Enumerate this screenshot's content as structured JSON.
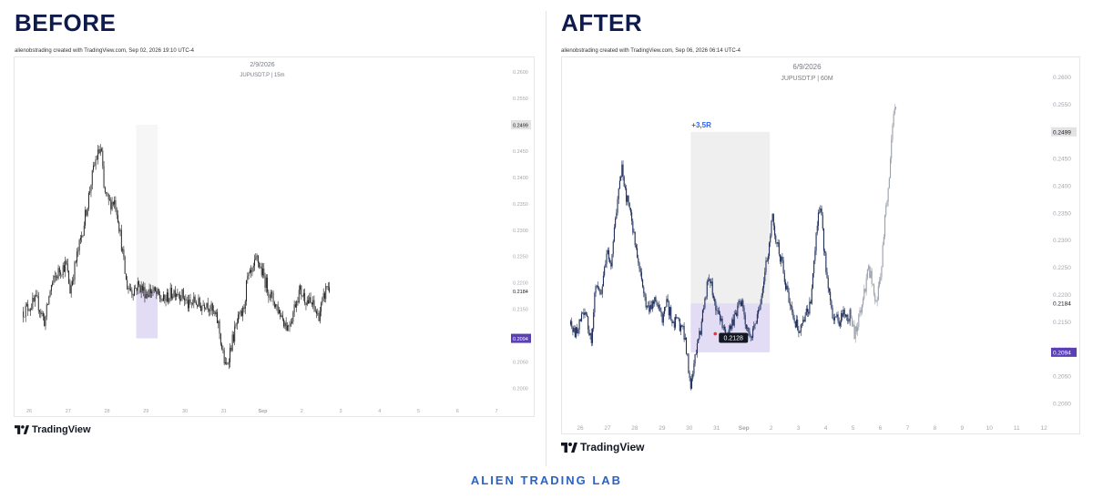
{
  "before": {
    "heading": "BEFORE",
    "credit": "alienobstrading created with TradingView.com, Sep 02, 2026 19:10 UTC-4",
    "brand": "TradingView",
    "chart_data": {
      "type": "candlestick",
      "date": "2/9/2026",
      "symbol": "JUPUSDT.P",
      "interval": "15m",
      "x_tick_labels": [
        "26",
        "27",
        "28",
        "29",
        "30",
        "31",
        "Sep",
        "2",
        "3",
        "4",
        "5",
        "6",
        "7"
      ],
      "y_ticks": [
        0.26,
        0.255,
        0.25,
        0.245,
        0.24,
        0.235,
        0.23,
        0.225,
        0.22,
        0.215,
        0.21,
        0.205,
        0.2
      ],
      "ylim": [
        0.1975,
        0.2625
      ],
      "price_labels": [
        {
          "value": 0.2499,
          "role": "target",
          "text": "0.2499"
        },
        {
          "value": 0.2184,
          "role": "entry",
          "text": "0.2184"
        },
        {
          "value": 0.2094,
          "role": "stop",
          "text": "0.2094"
        }
      ],
      "position": {
        "type": "long",
        "entry": 0.2184,
        "target": 0.2499,
        "stop": 0.2094,
        "x_start": 2.75,
        "x_end": 3.3
      },
      "path": [
        [
          -0.15,
          0.2145
        ],
        [
          0.0,
          0.2155
        ],
        [
          0.2,
          0.2165
        ],
        [
          0.4,
          0.2125
        ],
        [
          0.55,
          0.219
        ],
        [
          0.75,
          0.222
        ],
        [
          0.95,
          0.2235
        ],
        [
          1.05,
          0.2185
        ],
        [
          1.2,
          0.224
        ],
        [
          1.35,
          0.229
        ],
        [
          1.5,
          0.235
        ],
        [
          1.6,
          0.2395
        ],
        [
          1.72,
          0.2435
        ],
        [
          1.85,
          0.2455
        ],
        [
          1.92,
          0.2375
        ],
        [
          2.05,
          0.235
        ],
        [
          2.2,
          0.2355
        ],
        [
          2.28,
          0.2325
        ],
        [
          2.4,
          0.2255
        ],
        [
          2.5,
          0.2195
        ],
        [
          2.65,
          0.2185
        ],
        [
          2.8,
          0.2195
        ],
        [
          3.0,
          0.218
        ],
        [
          3.15,
          0.2185
        ],
        [
          3.3,
          0.2175
        ],
        [
          3.45,
          0.2165
        ],
        [
          3.6,
          0.2175
        ],
        [
          3.75,
          0.2185
        ],
        [
          3.95,
          0.2175
        ],
        [
          4.1,
          0.2155
        ],
        [
          4.25,
          0.2165
        ],
        [
          4.4,
          0.2155
        ],
        [
          4.55,
          0.2165
        ],
        [
          4.7,
          0.2145
        ],
        [
          4.85,
          0.2125
        ],
        [
          4.95,
          0.2075
        ],
        [
          5.05,
          0.2035
        ],
        [
          5.2,
          0.2085
        ],
        [
          5.35,
          0.2125
        ],
        [
          5.5,
          0.2145
        ],
        [
          5.6,
          0.2205
        ],
        [
          5.72,
          0.2215
        ],
        [
          5.85,
          0.2245
        ],
        [
          5.95,
          0.2225
        ],
        [
          6.05,
          0.2205
        ],
        [
          6.2,
          0.2175
        ],
        [
          6.35,
          0.2155
        ],
        [
          6.5,
          0.2135
        ],
        [
          6.62,
          0.2115
        ],
        [
          6.75,
          0.2135
        ],
        [
          6.85,
          0.2165
        ],
        [
          6.95,
          0.2185
        ],
        [
          7.05,
          0.2175
        ],
        [
          7.15,
          0.2165
        ],
        [
          7.3,
          0.2155
        ],
        [
          7.42,
          0.2135
        ],
        [
          7.55,
          0.2165
        ],
        [
          7.65,
          0.2195
        ],
        [
          7.72,
          0.2185
        ]
      ]
    }
  },
  "after": {
    "heading": "AFTER",
    "credit": "alienobstrading created with TradingView.com, Sep 06, 2026 06:14 UTC-4",
    "brand": "TradingView",
    "chart_data": {
      "type": "candlestick",
      "date": "6/9/2026",
      "symbol": "JUPUSDT.P",
      "interval": "60M",
      "x_tick_labels": [
        "26",
        "27",
        "28",
        "29",
        "30",
        "31",
        "Sep",
        "2",
        "3",
        "4",
        "5",
        "6",
        "7",
        "8",
        "9",
        "10",
        "11",
        "12"
      ],
      "y_ticks": [
        0.26,
        0.255,
        0.25,
        0.245,
        0.24,
        0.235,
        0.23,
        0.225,
        0.22,
        0.215,
        0.21,
        0.205,
        0.2
      ],
      "ylim": [
        0.1975,
        0.2635
      ],
      "price_labels": [
        {
          "value": 0.2499,
          "role": "target",
          "text": "0.2499"
        },
        {
          "value": 0.2184,
          "role": "entry",
          "text": "0.2184"
        },
        {
          "value": 0.2094,
          "role": "stop",
          "text": "0.2094"
        }
      ],
      "position": {
        "type": "long",
        "entry": 0.2184,
        "target": 0.2499,
        "stop": 0.2094,
        "x_start": 4.05,
        "x_end": 6.95
      },
      "result_label": "+3,5R",
      "low_marker": {
        "x": 4.95,
        "value": 0.2128,
        "text": "0.2128"
      },
      "path": [
        [
          -0.35,
          0.2145
        ],
        [
          -0.2,
          0.2125
        ],
        [
          0.0,
          0.2155
        ],
        [
          0.2,
          0.2165
        ],
        [
          0.4,
          0.2115
        ],
        [
          0.55,
          0.221
        ],
        [
          0.75,
          0.2195
        ],
        [
          0.9,
          0.2255
        ],
        [
          1.0,
          0.2285
        ],
        [
          1.1,
          0.2245
        ],
        [
          1.25,
          0.232
        ],
        [
          1.35,
          0.236
        ],
        [
          1.45,
          0.2405
        ],
        [
          1.55,
          0.2435
        ],
        [
          1.65,
          0.2385
        ],
        [
          1.75,
          0.2375
        ],
        [
          1.85,
          0.2345
        ],
        [
          2.0,
          0.2305
        ],
        [
          2.1,
          0.2255
        ],
        [
          2.25,
          0.2225
        ],
        [
          2.4,
          0.2185
        ],
        [
          2.55,
          0.2175
        ],
        [
          2.7,
          0.2195
        ],
        [
          2.85,
          0.2175
        ],
        [
          3.0,
          0.2155
        ],
        [
          3.15,
          0.2185
        ],
        [
          3.3,
          0.2165
        ],
        [
          3.45,
          0.2145
        ],
        [
          3.55,
          0.2165
        ],
        [
          3.65,
          0.2135
        ],
        [
          3.75,
          0.2145
        ],
        [
          3.85,
          0.2115
        ],
        [
          3.95,
          0.2075
        ],
        [
          4.05,
          0.2025
        ],
        [
          4.15,
          0.2065
        ],
        [
          4.3,
          0.2105
        ],
        [
          4.45,
          0.2145
        ],
        [
          4.55,
          0.2195
        ],
        [
          4.65,
          0.2215
        ],
        [
          4.75,
          0.2225
        ],
        [
          4.85,
          0.2205
        ],
        [
          4.95,
          0.2185
        ],
        [
          5.1,
          0.2155
        ],
        [
          5.25,
          0.2135
        ],
        [
          5.4,
          0.2125
        ],
        [
          5.55,
          0.2145
        ],
        [
          5.7,
          0.2165
        ],
        [
          5.85,
          0.2195
        ],
        [
          5.95,
          0.2175
        ],
        [
          6.05,
          0.2155
        ],
        [
          6.15,
          0.2135
        ],
        [
          6.25,
          0.2115
        ],
        [
          6.4,
          0.2145
        ],
        [
          6.55,
          0.2175
        ],
        [
          6.65,
          0.2205
        ],
        [
          6.75,
          0.2235
        ],
        [
          6.85,
          0.2265
        ],
        [
          6.95,
          0.2305
        ],
        [
          7.05,
          0.2355
        ],
        [
          7.15,
          0.2305
        ],
        [
          7.25,
          0.2285
        ],
        [
          7.4,
          0.2255
        ],
        [
          7.55,
          0.2215
        ],
        [
          7.7,
          0.2185
        ],
        [
          7.85,
          0.2155
        ],
        [
          8.0,
          0.2135
        ],
        [
          8.15,
          0.2145
        ],
        [
          8.3,
          0.2165
        ],
        [
          8.45,
          0.2185
        ],
        [
          8.55,
          0.2255
        ],
        [
          8.65,
          0.2315
        ],
        [
          8.75,
          0.2365
        ],
        [
          8.85,
          0.2345
        ],
        [
          8.95,
          0.2275
        ],
        [
          9.05,
          0.2235
        ],
        [
          9.15,
          0.2195
        ],
        [
          9.25,
          0.2165
        ],
        [
          9.4,
          0.2155
        ],
        [
          9.5,
          0.2135
        ],
        [
          9.6,
          0.2165
        ],
        [
          9.7,
          0.2175
        ],
        [
          9.8,
          0.2155
        ],
        [
          9.9,
          0.2165
        ],
        [
          10.0,
          0.2145
        ],
        [
          10.05,
          0.2128
        ],
        [
          10.15,
          0.2145
        ],
        [
          10.25,
          0.2165
        ],
        [
          10.35,
          0.2185
        ],
        [
          10.45,
          0.2215
        ],
        [
          10.55,
          0.2245
        ],
        [
          10.65,
          0.2235
        ],
        [
          10.75,
          0.2205
        ],
        [
          10.85,
          0.2185
        ],
        [
          10.95,
          0.2215
        ],
        [
          11.05,
          0.2255
        ],
        [
          11.12,
          0.2305
        ],
        [
          11.2,
          0.2355
        ],
        [
          11.3,
          0.2405
        ],
        [
          11.38,
          0.2455
        ],
        [
          11.45,
          0.2505
        ],
        [
          11.52,
          0.2535
        ],
        [
          11.58,
          0.2545
        ]
      ]
    }
  },
  "footer": "ALIEN TRADING LAB"
}
